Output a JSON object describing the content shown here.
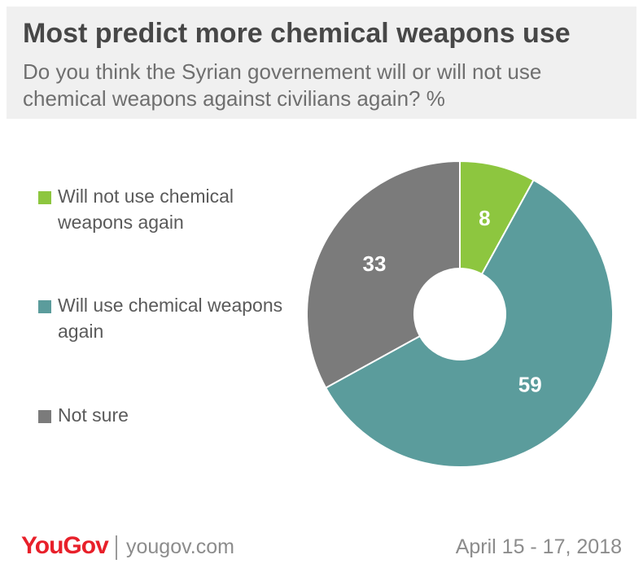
{
  "header": {
    "title": "Most predict more chemical weapons use",
    "subtitle": "Do you think the Syrian governement will or will not use chemical weapons against civilians again? %"
  },
  "chart_data": {
    "type": "pie",
    "title": "Most predict more chemical weapons use",
    "subtitle": "Do you think the Syrian governement will or will not use chemical weapons against civilians again? %",
    "donut": true,
    "legend_position": "left",
    "categories": [
      "Will not use chemical weapons again",
      "Will use chemical weapons again",
      "Not sure"
    ],
    "values": [
      8,
      59,
      33
    ],
    "colors": [
      "#8dc63f",
      "#5b9c9c",
      "#7b7b7b"
    ],
    "labels": [
      "8",
      "59",
      "33"
    ]
  },
  "footer": {
    "brand": "YouGov",
    "url": "yougov.com",
    "date": "April 15 - 17, 2018"
  }
}
